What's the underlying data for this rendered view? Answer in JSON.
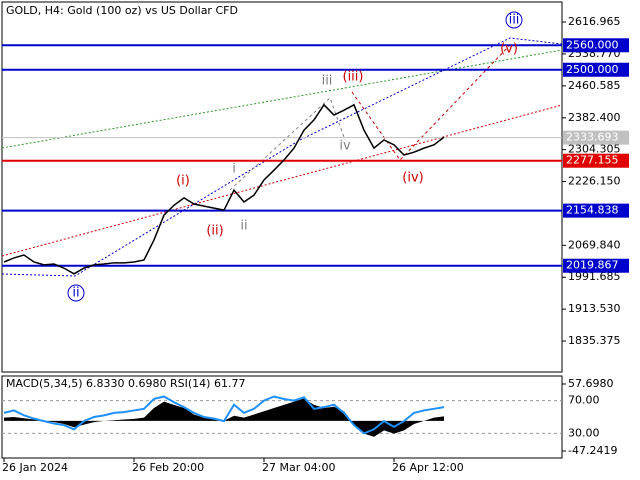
{
  "chart_data": [
    {
      "type": "line",
      "title": "GOLD, H4:  Gold (100 oz) vs US Dollar CFD",
      "categories": [
        "26 Jan 2024",
        null,
        null,
        null,
        null,
        null,
        null,
        null,
        null,
        null,
        null,
        null,
        null,
        "26 Feb 20:00",
        null,
        null,
        null,
        null,
        null,
        null,
        null,
        null,
        null,
        null,
        null,
        null,
        "27 Mar 04:00",
        null,
        null,
        null,
        null,
        null,
        null,
        null,
        null,
        null,
        null,
        null,
        null,
        "26 Apr 12:00",
        null,
        null,
        null,
        null,
        null
      ],
      "values": [
        2029,
        2039,
        2046,
        2029,
        2022,
        2024,
        2014,
        2000,
        2014,
        2022,
        2024,
        2027,
        2027,
        2029,
        2034,
        2083,
        2144,
        2168,
        2186,
        2171,
        2166,
        2161,
        2156,
        2205,
        2176,
        2193,
        2230,
        2254,
        2279,
        2308,
        2352,
        2377,
        2414,
        2389,
        2401,
        2414,
        2352,
        2308,
        2328,
        2316,
        2291,
        2298,
        2308,
        2316,
        2335
      ],
      "color": "#000000",
      "ylim": [
        1759.5,
        2670.9
      ],
      "yticks": [
        2616.965,
        {
          "value": 2538.77,
          "label": "2538.770"
        },
        2460.585,
        {
          "value": 2382.4,
          "label": "2382.400"
        },
        2304.305,
        {
          "value": 2226.15,
          "label": "2226.150"
        },
        {
          "value": 2069.84,
          "label": "2069.840"
        },
        1991.685,
        {
          "value": 1913.53,
          "label": "1913.530"
        },
        1835.375
      ],
      "levels": [
        {
          "value": 2560,
          "label": "2560.000",
          "color": "#0000cc"
        },
        {
          "value": 2500,
          "label": "2500.000",
          "color": "#0000cc"
        },
        {
          "value": 2333.693,
          "label": "2333.693",
          "color": "#c0c0c0"
        },
        {
          "value": 2277.155,
          "label": "2277.155",
          "color": "#e00000"
        },
        {
          "value": 2154.838,
          "label": "2154.838",
          "color": "#0000cc"
        },
        {
          "value": 2019.867,
          "label": "2019.867",
          "color": "#0000cc"
        }
      ],
      "annotations": [
        {
          "text": "(i)",
          "color": "#cc0000"
        },
        {
          "text": "(ii)",
          "color": "#cc0000"
        },
        {
          "text": "(iii)",
          "color": "#cc0000"
        },
        {
          "text": "(iv)",
          "color": "#cc0000"
        },
        {
          "text": "(v)",
          "color": "#cc0000"
        },
        {
          "text": "i",
          "color": "#808080"
        },
        {
          "text": "ii",
          "color": "#808080"
        },
        {
          "text": "iii",
          "color": "#808080"
        },
        {
          "text": "iv",
          "color": "#808080"
        },
        {
          "text": "ii",
          "color": "#0000cc",
          "circled": true
        },
        {
          "text": "iii",
          "color": "#0000cc",
          "circled": true
        }
      ]
    },
    {
      "type": "line",
      "title": "MACD(5,34,5) 6.8330 0.6980 RSI(14) 61.77",
      "ylim": [
        -58.2,
        70.2
      ],
      "yticks": [
        {
          "value": 57.698,
          "label": "57.6980"
        },
        -47.2419
      ],
      "y2lim": [
        0,
        100
      ],
      "y2ticks": [
        {
          "value": 70,
          "label": "70.00"
        },
        {
          "value": 30,
          "label": "30.00"
        }
      ],
      "series": [
        {
          "type": "area",
          "color": "#000000",
          "values": [
            5,
            6,
            4,
            2,
            0,
            -2,
            -5,
            -10,
            -6,
            -2,
            0,
            1,
            2,
            3,
            5,
            20,
            30,
            25,
            20,
            10,
            5,
            2,
            0,
            8,
            5,
            10,
            15,
            20,
            25,
            30,
            35,
            25,
            20,
            22,
            15,
            -5,
            -20,
            -25,
            -15,
            -20,
            -15,
            -5,
            0,
            5,
            7
          ]
        },
        {
          "type": "line",
          "axis": "y2",
          "color": "#1e90ff",
          "values": [
            55,
            58,
            52,
            48,
            45,
            42,
            40,
            35,
            45,
            50,
            52,
            55,
            56,
            58,
            60,
            72,
            75,
            68,
            62,
            55,
            50,
            48,
            45,
            65,
            55,
            60,
            70,
            75,
            72,
            70,
            74,
            60,
            62,
            65,
            55,
            40,
            30,
            35,
            45,
            38,
            45,
            55,
            58,
            60,
            62
          ]
        }
      ]
    }
  ]
}
